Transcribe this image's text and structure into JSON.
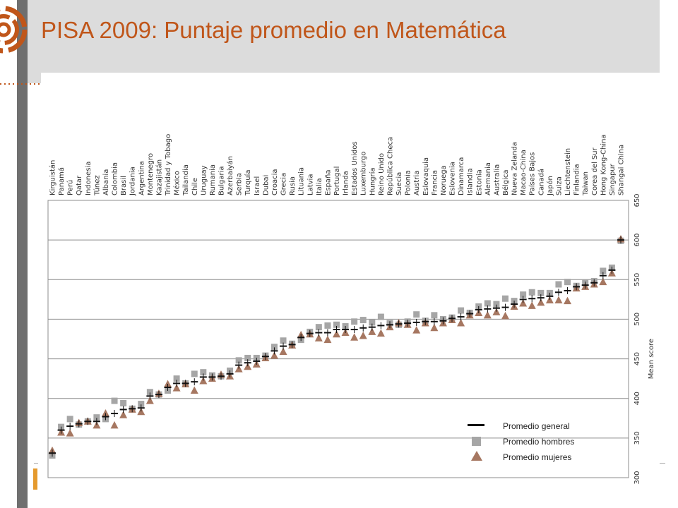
{
  "slide": {
    "title": "PISA 2009: Puntaje promedio en Matemática",
    "accent_color": "#c0561a",
    "icons": [
      "spiral-logo-icon",
      "dotted-divider-icon"
    ]
  },
  "chart_data": {
    "type": "scatter",
    "title": "",
    "xlabel": "",
    "ylabel": "Mean score",
    "ylim": [
      300,
      650
    ],
    "yticks": [
      300,
      350,
      400,
      450,
      500,
      550,
      600,
      650
    ],
    "grid": true,
    "legend_position": "bottom-right",
    "categories": [
      "Kirguistán",
      "Panamá",
      "Perú",
      "Qatar",
      "Indonesia",
      "Túnez",
      "Albania",
      "Colombia",
      "Brasil",
      "Jordania",
      "Argentina",
      "Montenegro",
      "Kazajistán",
      "Trinidad y Tobago",
      "México",
      "Tailandia",
      "Chile",
      "Uruguay",
      "Rumania",
      "Bulgaria",
      "Azerbaiyán",
      "Serbia",
      "Turquía",
      "Israel",
      "Dubai",
      "Croacia",
      "Grecia",
      "Rusia",
      "Lituania",
      "Latvia",
      "Italia",
      "España",
      "Portugal",
      "Irlanda",
      "Estados Unidos",
      "Luxemburgo",
      "Hungría",
      "Reino Unido",
      "República Checa",
      "Suecia",
      "Polonia",
      "Austria",
      "Eslovaquia",
      "Francia",
      "Noruega",
      "Eslovenia",
      "Dinamarca",
      "Islandia",
      "Estonia",
      "Alemania",
      "Australia",
      "Bélgica",
      "Nueva Zelanda",
      "Macao-China",
      "Países Bajos",
      "Canadá",
      "Japón",
      "Suiza",
      "Liechtenstein",
      "Finlandia",
      "Taiwan",
      "Corea del Sur",
      "Hong Kong-China",
      "Singapur",
      "Shangai China"
    ],
    "series": [
      {
        "name": "Promedio general",
        "marker": "bar",
        "color": "#111111",
        "values": [
          331,
          360,
          365,
          368,
          371,
          371,
          377,
          381,
          386,
          387,
          388,
          403,
          405,
          414,
          419,
          419,
          421,
          427,
          427,
          428,
          431,
          442,
          445,
          447,
          453,
          460,
          466,
          468,
          477,
          482,
          483,
          483,
          487,
          487,
          487,
          489,
          490,
          492,
          493,
          494,
          495,
          496,
          497,
          497,
          498,
          501,
          503,
          507,
          512,
          513,
          514,
          515,
          519,
          525,
          526,
          527,
          529,
          534,
          536,
          541,
          543,
          546,
          555,
          562,
          600
        ]
      },
      {
        "name": "Promedio hombres",
        "marker": "square",
        "color": "#a6a6a6",
        "values": [
          328,
          364,
          374,
          367,
          371,
          376,
          374,
          397,
          394,
          387,
          393,
          408,
          405,
          410,
          425,
          419,
          431,
          433,
          429,
          428,
          435,
          448,
          451,
          451,
          454,
          465,
          473,
          469,
          474,
          484,
          490,
          492,
          493,
          491,
          497,
          499,
          496,
          503,
          495,
          493,
          497,
          506,
          498,
          505,
          500,
          502,
          511,
          508,
          516,
          520,
          519,
          526,
          523,
          531,
          534,
          533,
          533,
          544,
          547,
          542,
          546,
          548,
          561,
          565,
          599
        ]
      },
      {
        "name": "Promedio mujeres",
        "marker": "triangle",
        "color": "#a67761",
        "values": [
          334,
          357,
          356,
          369,
          371,
          366,
          381,
          366,
          379,
          386,
          383,
          397,
          406,
          418,
          413,
          418,
          410,
          422,
          425,
          430,
          428,
          437,
          440,
          443,
          451,
          454,
          459,
          467,
          480,
          481,
          476,
          474,
          481,
          483,
          477,
          479,
          484,
          482,
          490,
          495,
          493,
          486,
          495,
          489,
          495,
          499,
          495,
          505,
          508,
          505,
          509,
          504,
          516,
          520,
          517,
          521,
          524,
          524,
          523,
          539,
          541,
          544,
          547,
          558,
          601
        ]
      }
    ]
  }
}
